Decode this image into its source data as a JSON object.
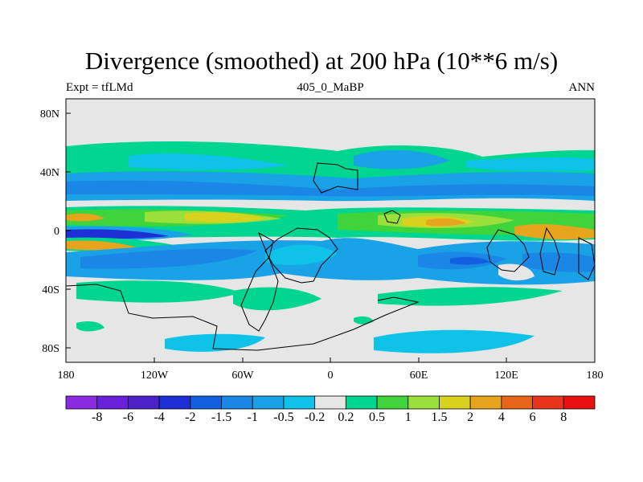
{
  "chart_data": {
    "type": "heatmap",
    "title": "Divergence (smoothed) at 200 hPa (10**6 m/s)",
    "left_subtitle": "Expt = tfLMd",
    "center_subtitle": "405_0_MaBP",
    "right_subtitle": "ANN",
    "x_ticks": [
      "180",
      "120W",
      "60W",
      "0",
      "60E",
      "120E",
      "180"
    ],
    "y_ticks": [
      "80N",
      "40N",
      "0",
      "40S",
      "80S"
    ],
    "xlim": [
      -180,
      180
    ],
    "ylim": [
      -90,
      90
    ],
    "colorbar": {
      "labels": [
        "-8",
        "-6",
        "-4",
        "-2",
        "-1.5",
        "-1",
        "-0.5",
        "-0.2",
        "0.2",
        "0.5",
        "1",
        "1.5",
        "2",
        "4",
        "6",
        "8"
      ],
      "colors": [
        "#8a2be2",
        "#6a1fd8",
        "#4b22c8",
        "#1f2fd6",
        "#1060e0",
        "#1a86e6",
        "#19a2e6",
        "#0fc3e8",
        "#e6e6e6",
        "#00d68f",
        "#3fd43c",
        "#9be03a",
        "#d8d21e",
        "#e6a51c",
        "#e8661a",
        "#e8341a",
        "#e81010"
      ]
    }
  }
}
